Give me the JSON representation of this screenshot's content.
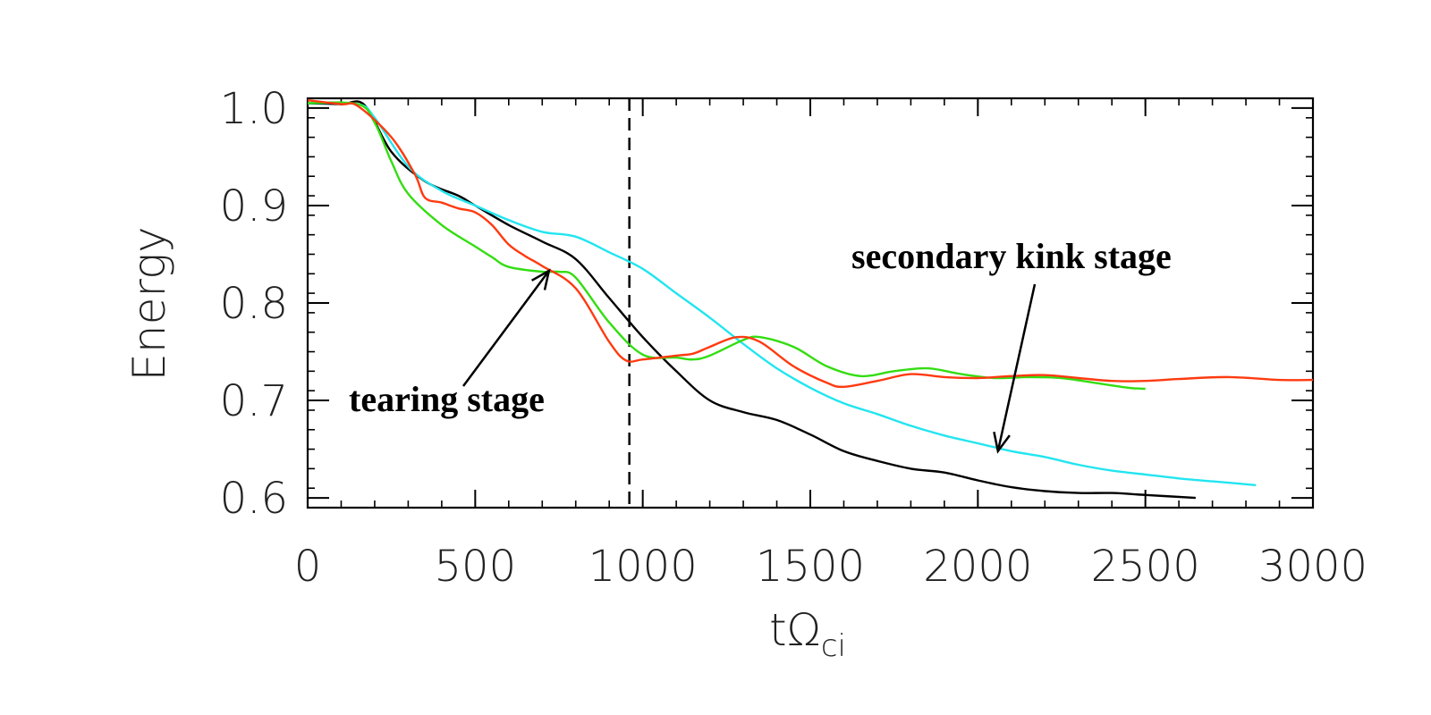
{
  "chart_data": {
    "type": "line",
    "title": "",
    "xlabel_main": "tΩ",
    "xlabel_sub": "ci",
    "ylabel": "Energy",
    "xlim": [
      0,
      3000
    ],
    "ylim": [
      0.59,
      1.01
    ],
    "x_ticks": [
      0,
      500,
      1000,
      1500,
      2000,
      2500,
      3000
    ],
    "x_tick_labels": [
      "0",
      "500",
      "1000",
      "1500",
      "2000",
      "2500",
      "3000"
    ],
    "y_ticks": [
      0.6,
      0.7,
      0.8,
      0.9,
      1.0
    ],
    "y_tick_labels": [
      "0.6",
      "0.7",
      "0.8",
      "0.9",
      "1.0"
    ],
    "grid": false,
    "vertical_reference_line": {
      "x": 960,
      "style": "dashed"
    },
    "series": [
      {
        "name": "black",
        "color": "#000000",
        "points": [
          [
            0,
            1.005
          ],
          [
            100,
            1.004
          ],
          [
            170,
            1.003
          ],
          [
            250,
            0.955
          ],
          [
            350,
            0.925
          ],
          [
            450,
            0.91
          ],
          [
            500,
            0.9
          ],
          [
            600,
            0.88
          ],
          [
            700,
            0.863
          ],
          [
            800,
            0.845
          ],
          [
            900,
            0.805
          ],
          [
            1000,
            0.765
          ],
          [
            1100,
            0.73
          ],
          [
            1200,
            0.7
          ],
          [
            1300,
            0.688
          ],
          [
            1400,
            0.68
          ],
          [
            1500,
            0.665
          ],
          [
            1600,
            0.648
          ],
          [
            1700,
            0.638
          ],
          [
            1800,
            0.63
          ],
          [
            1900,
            0.626
          ],
          [
            2000,
            0.618
          ],
          [
            2100,
            0.611
          ],
          [
            2200,
            0.607
          ],
          [
            2300,
            0.605
          ],
          [
            2400,
            0.605
          ],
          [
            2500,
            0.603
          ],
          [
            2650,
            0.6
          ]
        ]
      },
      {
        "name": "cyan",
        "color": "#22e5f0",
        "points": [
          [
            0,
            1.005
          ],
          [
            150,
            1.004
          ],
          [
            200,
            0.99
          ],
          [
            300,
            0.94
          ],
          [
            400,
            0.915
          ],
          [
            500,
            0.9
          ],
          [
            600,
            0.885
          ],
          [
            700,
            0.873
          ],
          [
            800,
            0.868
          ],
          [
            900,
            0.852
          ],
          [
            1000,
            0.835
          ],
          [
            1100,
            0.81
          ],
          [
            1200,
            0.785
          ],
          [
            1300,
            0.758
          ],
          [
            1400,
            0.733
          ],
          [
            1500,
            0.713
          ],
          [
            1600,
            0.697
          ],
          [
            1700,
            0.686
          ],
          [
            1800,
            0.674
          ],
          [
            1900,
            0.664
          ],
          [
            2000,
            0.656
          ],
          [
            2100,
            0.648
          ],
          [
            2200,
            0.642
          ],
          [
            2300,
            0.634
          ],
          [
            2400,
            0.628
          ],
          [
            2500,
            0.624
          ],
          [
            2600,
            0.62
          ],
          [
            2700,
            0.617
          ],
          [
            2800,
            0.614
          ],
          [
            2830,
            0.613
          ]
        ]
      },
      {
        "name": "green",
        "color": "#33dd11",
        "points": [
          [
            0,
            1.005
          ],
          [
            150,
            1.004
          ],
          [
            200,
            0.985
          ],
          [
            250,
            0.945
          ],
          [
            300,
            0.912
          ],
          [
            400,
            0.88
          ],
          [
            500,
            0.858
          ],
          [
            550,
            0.847
          ],
          [
            600,
            0.837
          ],
          [
            700,
            0.832
          ],
          [
            750,
            0.832
          ],
          [
            800,
            0.826
          ],
          [
            900,
            0.78
          ],
          [
            1000,
            0.747
          ],
          [
            1100,
            0.744
          ],
          [
            1150,
            0.742
          ],
          [
            1200,
            0.746
          ],
          [
            1300,
            0.762
          ],
          [
            1350,
            0.765
          ],
          [
            1450,
            0.755
          ],
          [
            1550,
            0.735
          ],
          [
            1650,
            0.725
          ],
          [
            1750,
            0.73
          ],
          [
            1850,
            0.733
          ],
          [
            1950,
            0.727
          ],
          [
            2050,
            0.723
          ],
          [
            2150,
            0.724
          ],
          [
            2250,
            0.723
          ],
          [
            2350,
            0.718
          ],
          [
            2450,
            0.713
          ],
          [
            2500,
            0.712
          ]
        ]
      },
      {
        "name": "red",
        "color": "#ff3a10",
        "points": [
          [
            0,
            1.008
          ],
          [
            100,
            1.004
          ],
          [
            150,
            1.002
          ],
          [
            250,
            0.97
          ],
          [
            320,
            0.932
          ],
          [
            350,
            0.908
          ],
          [
            400,
            0.903
          ],
          [
            450,
            0.897
          ],
          [
            500,
            0.893
          ],
          [
            550,
            0.88
          ],
          [
            600,
            0.86
          ],
          [
            650,
            0.848
          ],
          [
            700,
            0.838
          ],
          [
            800,
            0.815
          ],
          [
            900,
            0.76
          ],
          [
            950,
            0.741
          ],
          [
            1000,
            0.742
          ],
          [
            1100,
            0.746
          ],
          [
            1150,
            0.748
          ],
          [
            1200,
            0.755
          ],
          [
            1280,
            0.765
          ],
          [
            1350,
            0.76
          ],
          [
            1450,
            0.735
          ],
          [
            1550,
            0.718
          ],
          [
            1600,
            0.714
          ],
          [
            1700,
            0.72
          ],
          [
            1800,
            0.727
          ],
          [
            1900,
            0.724
          ],
          [
            2000,
            0.723
          ],
          [
            2100,
            0.725
          ],
          [
            2200,
            0.726
          ],
          [
            2300,
            0.723
          ],
          [
            2400,
            0.72
          ],
          [
            2500,
            0.72
          ],
          [
            2600,
            0.722
          ],
          [
            2750,
            0.724
          ],
          [
            2900,
            0.721
          ],
          [
            3000,
            0.721
          ]
        ]
      }
    ],
    "annotations": [
      {
        "name": "tearing",
        "text": "tearing stage",
        "arrow_to": [
          720,
          0.833
        ]
      },
      {
        "name": "secondary",
        "text": "secondary kink stage",
        "arrow_to": [
          2060,
          0.648
        ]
      }
    ]
  }
}
